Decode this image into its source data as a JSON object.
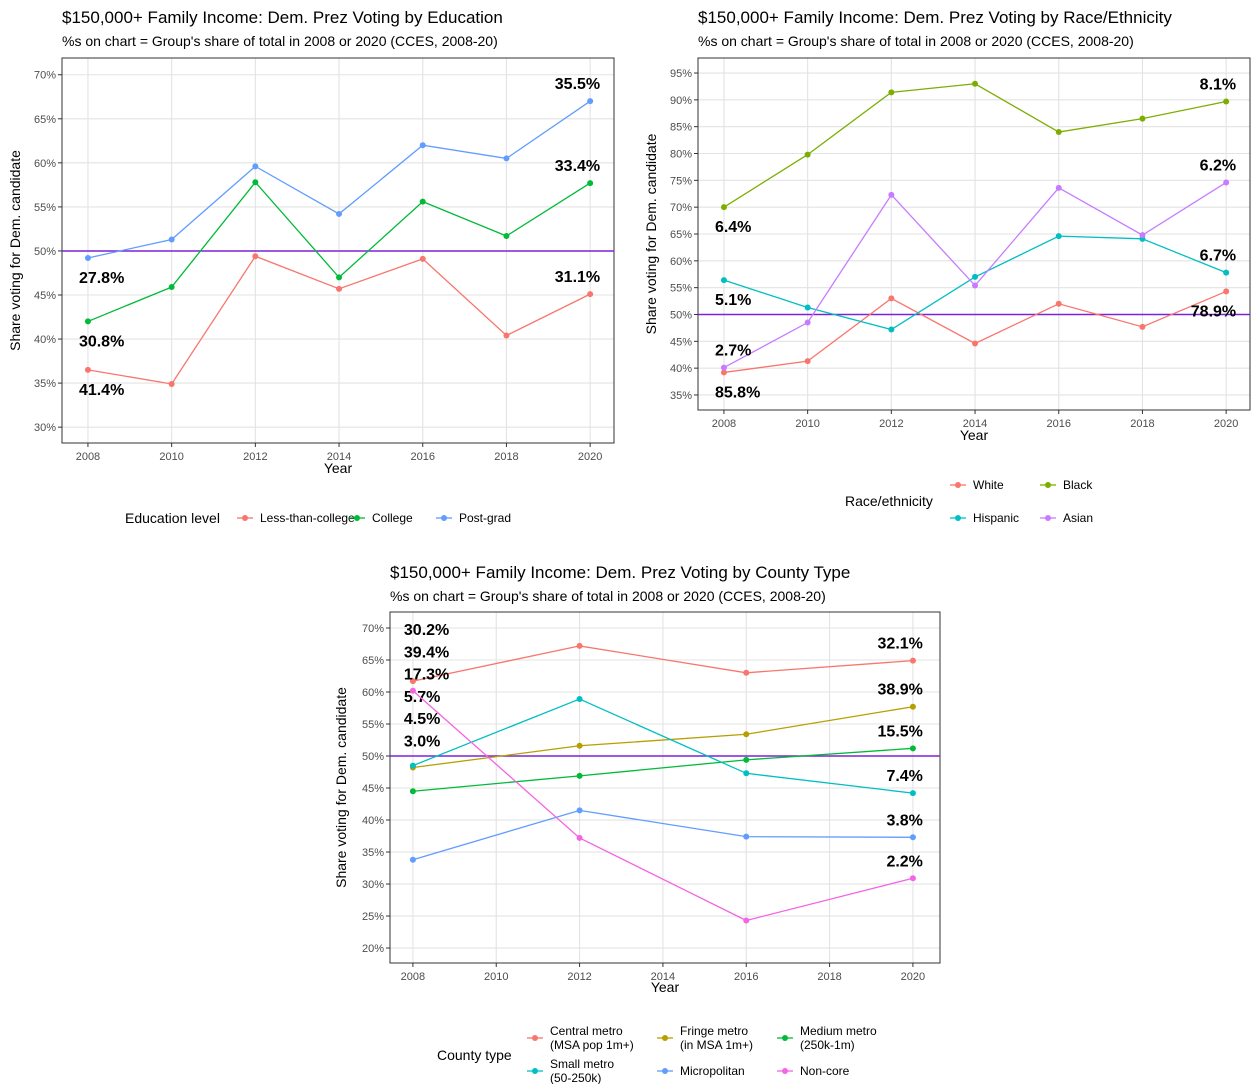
{
  "chart_data": [
    {
      "type": "line",
      "title": "$150,000+ Family Income: Dem. Prez Voting by Education",
      "subtitle": "%s on chart = Group's share of total in 2008 or 2020 (CCES, 2008-20)",
      "x_label": "Year",
      "y_label": "Share voting for Dem. candidate",
      "x": [
        2008,
        2010,
        2012,
        2014,
        2016,
        2018,
        2020
      ],
      "xlim": [
        2007.38,
        2020.57
      ],
      "xticks": [
        2008,
        2010,
        2012,
        2014,
        2016,
        2018,
        2020
      ],
      "ylim": [
        28.2,
        71.9
      ],
      "yticks": [
        {
          "value": 30,
          "label": "30%"
        },
        {
          "value": 35,
          "label": "35%"
        },
        {
          "value": 40,
          "label": "40%"
        },
        {
          "value": 45,
          "label": "45%"
        },
        {
          "value": 50,
          "label": "50%"
        },
        {
          "value": 55,
          "label": "55%"
        },
        {
          "value": 60,
          "label": "60%"
        },
        {
          "value": 65,
          "label": "65%"
        },
        {
          "value": 70,
          "label": "70%"
        }
      ],
      "grid": true,
      "reference_line": 50,
      "reference_color": "#7e22d8",
      "legend_title": "Education level",
      "legend_position": "bottom",
      "series": [
        {
          "name": "Less-than-college",
          "color": "#F8766D",
          "values": [
            36.5,
            34.9,
            49.4,
            45.7,
            49.1,
            40.4,
            45.1
          ],
          "start_label": {
            "text": "41.4%",
            "side": "below"
          },
          "end_label": {
            "text": "31.1%",
            "side": "above"
          }
        },
        {
          "name": "College",
          "color": "#00BA38",
          "values": [
            42.0,
            45.9,
            57.8,
            47.0,
            55.6,
            51.7,
            57.7
          ],
          "start_label": {
            "text": "30.8%",
            "side": "below"
          },
          "end_label": {
            "text": "33.4%",
            "side": "above"
          }
        },
        {
          "name": "Post-grad",
          "color": "#619CFF",
          "values": [
            49.2,
            51.3,
            59.6,
            54.2,
            62.0,
            60.5,
            67.0
          ],
          "start_label": {
            "text": "27.8%",
            "side": "below"
          },
          "end_label": {
            "text": "35.5%",
            "side": "above"
          }
        }
      ]
    },
    {
      "type": "line",
      "title": "$150,000+ Family Income: Dem. Prez Voting by Race/Ethnicity",
      "subtitle": "%s on chart = Group's share of total in 2008 or 2020 (CCES, 2008-20)",
      "x_label": "Year",
      "y_label": "Share voting for Dem. candidate",
      "x": [
        2008,
        2010,
        2012,
        2014,
        2016,
        2018,
        2020
      ],
      "xlim": [
        2007.38,
        2020.57
      ],
      "xticks": [
        2008,
        2010,
        2012,
        2014,
        2016,
        2018,
        2020
      ],
      "ylim": [
        32.2,
        97.8
      ],
      "yticks": [
        {
          "value": 35,
          "label": "35%"
        },
        {
          "value": 40,
          "label": "40%"
        },
        {
          "value": 45,
          "label": "45%"
        },
        {
          "value": 50,
          "label": "50%"
        },
        {
          "value": 55,
          "label": "55%"
        },
        {
          "value": 60,
          "label": "60%"
        },
        {
          "value": 65,
          "label": "65%"
        },
        {
          "value": 70,
          "label": "70%"
        },
        {
          "value": 75,
          "label": "75%"
        },
        {
          "value": 80,
          "label": "80%"
        },
        {
          "value": 85,
          "label": "85%"
        },
        {
          "value": 90,
          "label": "90%"
        },
        {
          "value": 95,
          "label": "95%"
        }
      ],
      "grid": true,
      "reference_line": 50,
      "reference_color": "#7e22d8",
      "legend_title": "Race/ethnicity",
      "legend_position": "bottom",
      "series": [
        {
          "name": "White",
          "color": "#F8766D",
          "values": [
            39.2,
            41.3,
            53.0,
            44.6,
            52.0,
            47.7,
            54.3
          ],
          "start_label": {
            "text": "85.8%",
            "side": "below"
          },
          "end_label": {
            "text": "78.9%",
            "side": "below"
          }
        },
        {
          "name": "Black",
          "color": "#7CAE00",
          "values": [
            70.0,
            79.8,
            91.4,
            93.0,
            84.0,
            86.5,
            89.7
          ],
          "start_label": {
            "text": "6.4%",
            "side": "below"
          },
          "end_label": {
            "text": "8.1%",
            "side": "above"
          }
        },
        {
          "name": "Hispanic",
          "color": "#00BFC4",
          "values": [
            56.4,
            51.3,
            47.2,
            57.0,
            64.6,
            64.1,
            57.8
          ],
          "start_label": {
            "text": "5.1%",
            "side": "below"
          },
          "end_label": {
            "text": "6.7%",
            "side": "above"
          }
        },
        {
          "name": "Asian",
          "color": "#C77CFF",
          "values": [
            40.1,
            48.5,
            72.3,
            55.4,
            73.6,
            64.8,
            74.6
          ],
          "start_label": {
            "text": "2.7%",
            "side": "above"
          },
          "end_label": {
            "text": "6.2%",
            "side": "above"
          }
        }
      ]
    },
    {
      "type": "line",
      "title": "$150,000+ Family Income: Dem. Prez Voting by County Type",
      "subtitle": "%s on chart = Group's share of total in 2008 or 2020 (CCES, 2008-20)",
      "x_label": "Year",
      "y_label": "Share voting for Dem. candidate",
      "x": [
        2008,
        2012,
        2016,
        2020
      ],
      "xlim": [
        2007.45,
        2020.65
      ],
      "xticks": [
        2008,
        2010,
        2012,
        2014,
        2016,
        2018,
        2020
      ],
      "ylim": [
        17.66,
        72.5
      ],
      "yticks": [
        {
          "value": 20,
          "label": "20%"
        },
        {
          "value": 25,
          "label": "25%"
        },
        {
          "value": 30,
          "label": "30%"
        },
        {
          "value": 35,
          "label": "35%"
        },
        {
          "value": 40,
          "label": "40%"
        },
        {
          "value": 45,
          "label": "45%"
        },
        {
          "value": 50,
          "label": "50%"
        },
        {
          "value": 55,
          "label": "55%"
        },
        {
          "value": 60,
          "label": "60%"
        },
        {
          "value": 65,
          "label": "65%"
        },
        {
          "value": 70,
          "label": "70%"
        }
      ],
      "grid": true,
      "reference_line": 50,
      "reference_color": "#7e22d8",
      "legend_title": "County type",
      "legend_position": "bottom",
      "series": [
        {
          "name": "Central metro\n(MSA pop 1m+)",
          "color": "#F8766D",
          "values": [
            61.7,
            67.2,
            63.0,
            64.9
          ],
          "start_label": {
            "text": "30.2%",
            "side": "stack"
          },
          "end_label": {
            "text": "32.1%",
            "side": "above"
          }
        },
        {
          "name": "Fringe metro\n(in MSA 1m+)",
          "color": "#B79F00",
          "values": [
            48.2,
            51.6,
            53.4,
            57.7
          ],
          "start_label": {
            "text": "39.4%",
            "side": "stack"
          },
          "end_label": {
            "text": "38.9%",
            "side": "above"
          }
        },
        {
          "name": "Medium metro\n(250k-1m)",
          "color": "#00BA38",
          "values": [
            44.5,
            46.9,
            49.4,
            51.2
          ],
          "start_label": {
            "text": "17.3%",
            "side": "stack"
          },
          "end_label": {
            "text": "15.5%",
            "side": "above"
          }
        },
        {
          "name": "Small metro\n(50-250k)",
          "color": "#00BFC4",
          "values": [
            48.5,
            58.9,
            47.3,
            44.2
          ],
          "start_label": {
            "text": "5.7%",
            "side": "stack"
          },
          "end_label": {
            "text": "7.4%",
            "side": "above"
          }
        },
        {
          "name": "Micropolitan",
          "color": "#619CFF",
          "values": [
            33.8,
            41.5,
            37.4,
            37.3
          ],
          "start_label": {
            "text": "4.5%",
            "side": "stack"
          },
          "end_label": {
            "text": "3.8%",
            "side": "above"
          }
        },
        {
          "name": "Non-core",
          "color": "#F564E3",
          "values": [
            60.2,
            37.2,
            24.3,
            30.9
          ],
          "start_label": {
            "text": "3.0%",
            "side": "stack"
          },
          "end_label": {
            "text": "2.2%",
            "side": "above"
          }
        }
      ]
    }
  ]
}
